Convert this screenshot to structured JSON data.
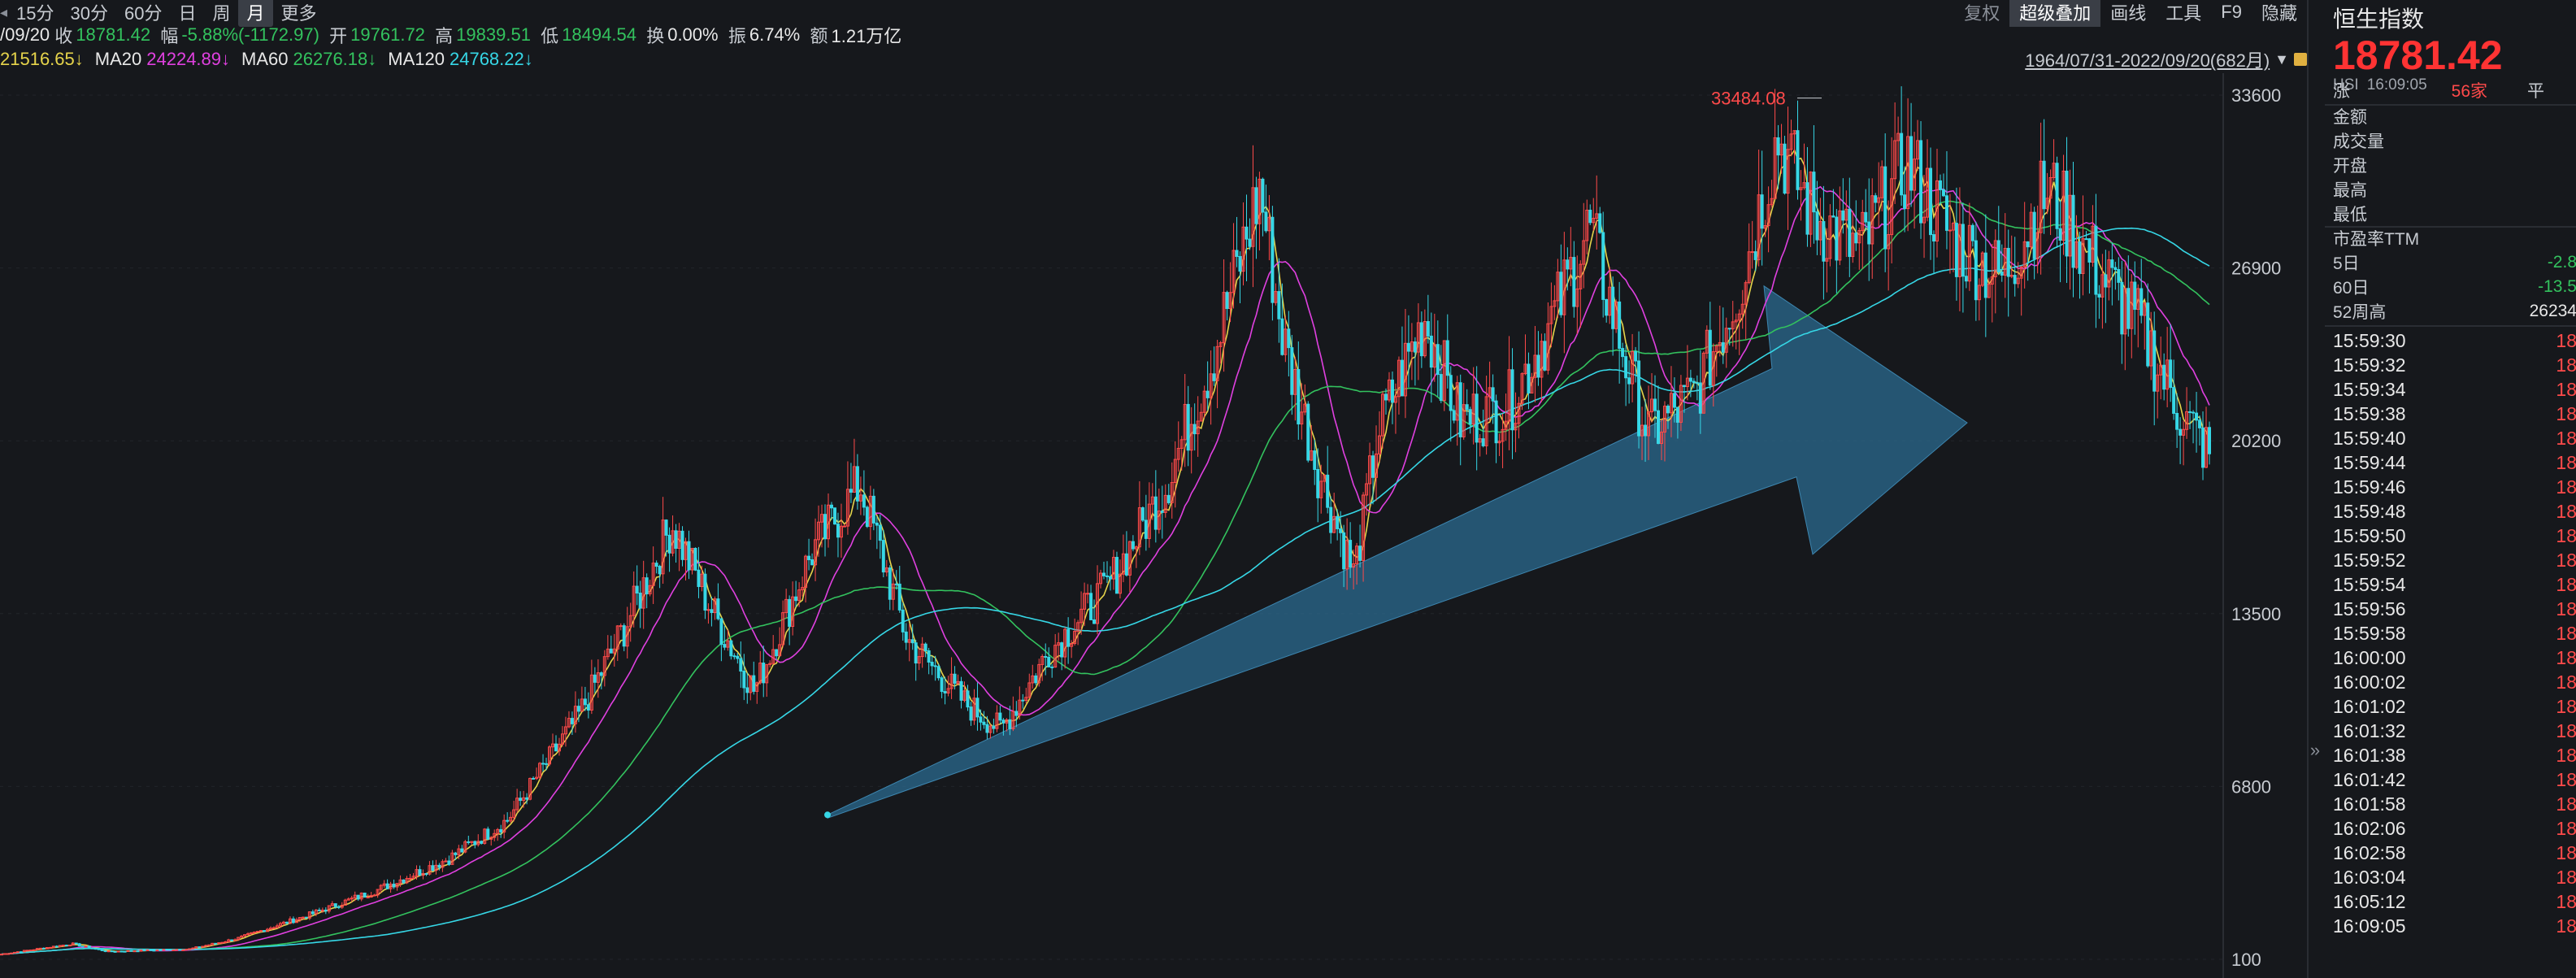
{
  "topbar": {
    "periods": [
      "15分",
      "30分",
      "60分",
      "日",
      "周",
      "月",
      "更多"
    ],
    "active_period": "月",
    "tools": [
      "复权",
      "超级叠加",
      "画线",
      "工具",
      "F9",
      "隐藏"
    ]
  },
  "quote": {
    "date": "/09/20",
    "close_label": "收",
    "close": "18781.42",
    "change_label": "幅",
    "change": "-5.88%(-1172.97)",
    "open_label": "开",
    "open": "19761.72",
    "high_label": "高",
    "high": "19839.51",
    "low_label": "低",
    "low": "18494.54",
    "turnover_label": "换",
    "turnover": "0.00%",
    "amplitude_label": "振",
    "amplitude": "6.74%",
    "amount_label": "额",
    "amount": "1.21万亿"
  },
  "ma": {
    "ma5_value": "21516.65↓",
    "ma20_label": "MA20",
    "ma20_value": "24224.89↓",
    "ma60_label": "MA60",
    "ma60_value": "26276.18↓",
    "ma120_label": "MA120",
    "ma120_value": "24768.22↓"
  },
  "range_text": "1964/07/31-2022/09/20(682月)",
  "colors": {
    "up": "#ff4a4a",
    "down": "#36d7e6",
    "ma5": "#e6d44b",
    "ma20": "#e040e0",
    "ma60": "#33c25e",
    "ma120": "#36d7e6",
    "arrow": "#2a5a7a",
    "bg": "#16181c"
  },
  "chart_data": {
    "type": "candlestick",
    "period": "monthly",
    "y_ticks": [
      "33600",
      "26900",
      "20200",
      "13500",
      "6800",
      "100"
    ],
    "ylim": [
      100,
      33600
    ],
    "peak_label": "33484.08",
    "overview_points": [
      [
        0,
        300
      ],
      [
        30,
        700
      ],
      [
        45,
        400
      ],
      [
        80,
        500
      ],
      [
        100,
        900
      ],
      [
        130,
        1800
      ],
      [
        160,
        2800
      ],
      [
        190,
        4000
      ],
      [
        215,
        5500
      ],
      [
        245,
        9500
      ],
      [
        265,
        13000
      ],
      [
        285,
        17000
      ],
      [
        300,
        14000
      ],
      [
        320,
        10500
      ],
      [
        345,
        16000
      ],
      [
        365,
        18500
      ],
      [
        385,
        12500
      ],
      [
        410,
        10000
      ],
      [
        425,
        9000
      ],
      [
        445,
        12000
      ],
      [
        470,
        14500
      ],
      [
        495,
        18500
      ],
      [
        515,
        23500
      ],
      [
        535,
        30000
      ],
      [
        545,
        24000
      ],
      [
        560,
        19000
      ],
      [
        575,
        15000
      ],
      [
        585,
        20500
      ],
      [
        605,
        25000
      ],
      [
        620,
        21000
      ],
      [
        640,
        21500
      ],
      [
        660,
        25000
      ],
      [
        675,
        28500
      ],
      [
        690,
        23500
      ],
      [
        700,
        20500
      ],
      [
        720,
        22000
      ],
      [
        740,
        26500
      ],
      [
        755,
        32000
      ],
      [
        770,
        29000
      ],
      [
        790,
        27500
      ],
      [
        810,
        31000
      ],
      [
        830,
        28000
      ],
      [
        850,
        26500
      ],
      [
        870,
        30000
      ],
      [
        890,
        27000
      ],
      [
        910,
        24500
      ],
      [
        925,
        21500
      ],
      [
        940,
        19500
      ]
    ]
  },
  "panel": {
    "name": "恒生指数",
    "price": "18781.42",
    "code": "HSI",
    "time": "16:09:05",
    "rise_label": "涨",
    "rise_count": "56家",
    "flat_label": "平",
    "fields": [
      "金额",
      "成交量",
      "开盘",
      "最高",
      "最低"
    ],
    "pe_label": "市盈率TTM",
    "day5_label": "5日",
    "day5_value": "-2.8",
    "day60_label": "60日",
    "day60_value": "-13.5",
    "week52_label": "52周高",
    "week52_value": "26234",
    "ticks": [
      "15:59:30",
      "15:59:32",
      "15:59:34",
      "15:59:38",
      "15:59:40",
      "15:59:44",
      "15:59:46",
      "15:59:48",
      "15:59:50",
      "15:59:52",
      "15:59:54",
      "15:59:56",
      "15:59:58",
      "16:00:00",
      "16:00:02",
      "16:01:02",
      "16:01:32",
      "16:01:38",
      "16:01:42",
      "16:01:58",
      "16:02:06",
      "16:02:58",
      "16:03:04",
      "16:05:12",
      "16:09:05"
    ],
    "tick_value": "18"
  }
}
